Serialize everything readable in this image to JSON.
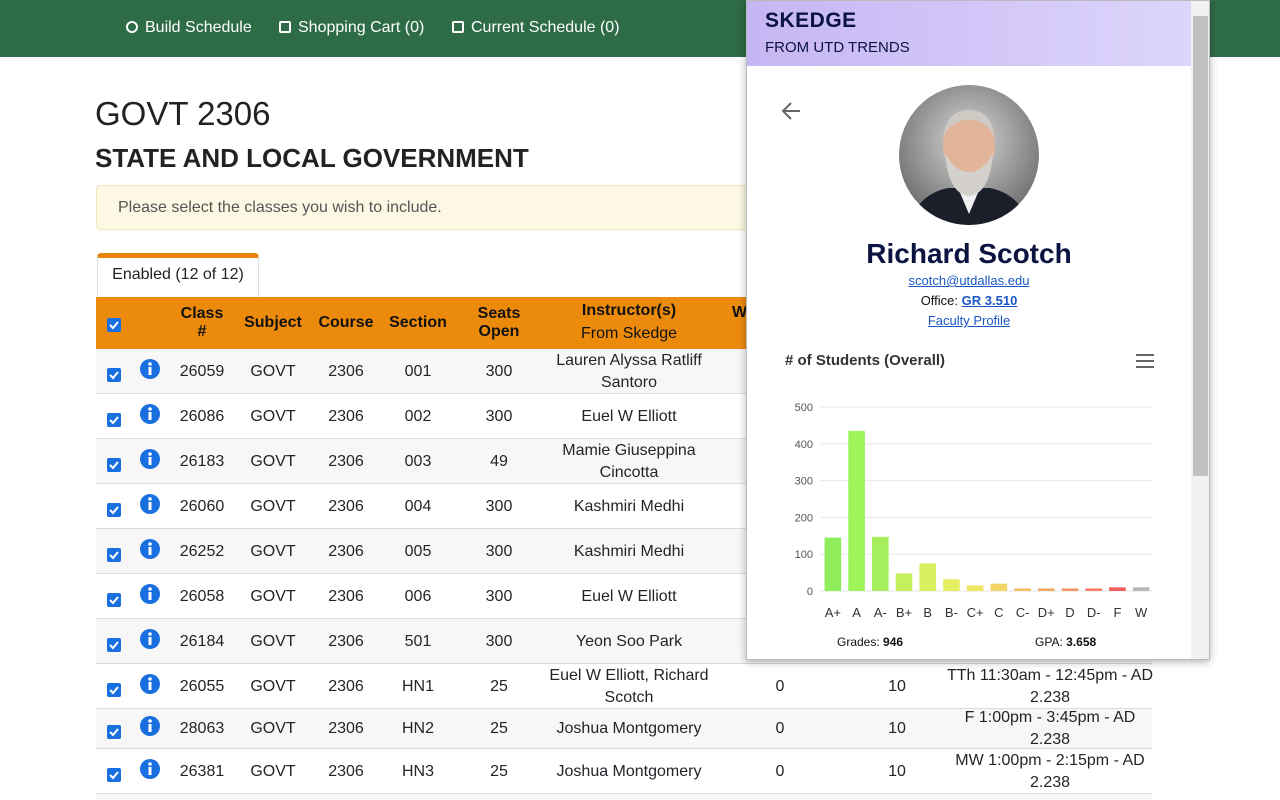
{
  "nav": [
    "Build Schedule",
    "Shopping Cart (0)",
    "Current Schedule (0)"
  ],
  "course": {
    "code": "GOVT 2306",
    "title": "STATE AND LOCAL GOVERNMENT"
  },
  "alert": "Please select the classes you wish to include.",
  "tab": "Enabled (12 of 12)",
  "table": {
    "headers": [
      "Class #",
      "Subject",
      "Course",
      "Section",
      "Seats Open",
      "Instructor(s)",
      "W"
    ],
    "header_note": "From Skedge",
    "rows": [
      [
        "26059",
        "GOVT",
        "2306",
        "001",
        "300",
        "Lauren Alyssa Ratliff Santoro"
      ],
      [
        "26086",
        "GOVT",
        "2306",
        "002",
        "300",
        "Euel W Elliott"
      ],
      [
        "26183",
        "GOVT",
        "2306",
        "003",
        "49",
        "Mamie Giuseppina Cincotta"
      ],
      [
        "26060",
        "GOVT",
        "2306",
        "004",
        "300",
        "Kashmiri Medhi"
      ],
      [
        "26252",
        "GOVT",
        "2306",
        "005",
        "300",
        "Kashmiri Medhi"
      ],
      [
        "26058",
        "GOVT",
        "2306",
        "006",
        "300",
        "Euel W Elliott"
      ],
      [
        "26184",
        "GOVT",
        "2306",
        "501",
        "300",
        "Yeon Soo Park"
      ],
      [
        "26055",
        "GOVT",
        "2306",
        "HN1",
        "25",
        "Euel W Elliott, Richard Scotch",
        "0",
        "10",
        "TTh 11:30am - 12:45pm - AD 2.238"
      ],
      [
        "28063",
        "GOVT",
        "2306",
        "HN2",
        "25",
        "Joshua Montgomery",
        "0",
        "10",
        "F 1:00pm - 3:45pm - AD 2.238"
      ],
      [
        "26381",
        "GOVT",
        "2306",
        "HN3",
        "25",
        "Joshua Montgomery",
        "0",
        "10",
        "MW 1:00pm - 2:15pm - AD 2.238"
      ]
    ]
  },
  "popup": {
    "brand": "SKEDGE",
    "subtitle": "FROM UTD TRENDS",
    "name": "Richard Scotch",
    "email": "scotch@utdallas.edu",
    "office_label": "Office:",
    "office": "GR 3.510",
    "profile_link": "Faculty Profile",
    "grades_label": "Grades:",
    "grades": 946,
    "gpa_label": "GPA:",
    "gpa": 3.658
  },
  "chart_data": {
    "type": "bar",
    "title": "# of Students (Overall)",
    "categories": [
      "A+",
      "A",
      "A-",
      "B+",
      "B",
      "B-",
      "C+",
      "C",
      "C-",
      "D+",
      "D",
      "D-",
      "F",
      "W"
    ],
    "values": [
      145,
      435,
      147,
      48,
      75,
      32,
      15,
      20,
      7,
      7,
      7,
      7,
      10,
      10
    ],
    "colors": [
      "#8fec5a",
      "#9cf45a",
      "#a6ef5c",
      "#c4ef5e",
      "#d6f060",
      "#e6ef62",
      "#efe664",
      "#f3d464",
      "#f5bd64",
      "#f5a864",
      "#f59464",
      "#f47e62",
      "#f05f5f",
      "#b8b8b8"
    ],
    "ylim": [
      0,
      500
    ],
    "yticks": [
      0,
      100,
      200,
      300,
      400,
      500
    ],
    "grid": true
  }
}
